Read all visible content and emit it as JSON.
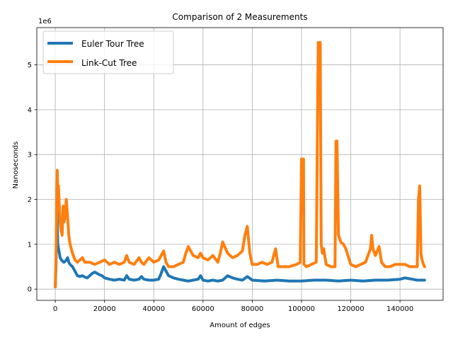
{
  "chart_data": {
    "type": "line",
    "title": "Comparison of 2 Measurements",
    "xlabel": "Amount of edges",
    "ylabel": "Nanoseconds",
    "y_offset_label": "1e6",
    "xlim": [
      -7500,
      157500
    ],
    "ylim": [
      -0.25,
      5.83
    ],
    "x_ticks": [
      0,
      20000,
      40000,
      60000,
      80000,
      100000,
      120000,
      140000
    ],
    "x_tick_labels": [
      "0",
      "20000",
      "40000",
      "60000",
      "80000",
      "100000",
      "120000",
      "140000"
    ],
    "y_ticks": [
      0,
      1,
      2,
      3,
      4,
      5
    ],
    "y_tick_labels": [
      "0",
      "1",
      "2",
      "3",
      "4",
      "5"
    ],
    "grid": true,
    "legend_position": "top-left",
    "series": [
      {
        "name": "Euler Tour Tree",
        "color": "#1f77b4",
        "x": [
          0,
          300,
          700,
          1000,
          1500,
          2000,
          2500,
          3000,
          3500,
          4000,
          4500,
          5000,
          5500,
          6000,
          7000,
          8000,
          9000,
          10000,
          11000,
          12000,
          13000,
          14000,
          15000,
          16000,
          17000,
          18000,
          19000,
          20000,
          22000,
          24000,
          26000,
          28000,
          29000,
          30000,
          32000,
          34000,
          35000,
          36000,
          38000,
          40000,
          42000,
          43000,
          44000,
          45000,
          46000,
          48000,
          50000,
          52000,
          54000,
          56000,
          58000,
          59000,
          60000,
          62000,
          64000,
          66000,
          68000,
          70000,
          72000,
          74000,
          76000,
          78000,
          80000,
          85000,
          90000,
          95000,
          100000,
          105000,
          110000,
          115000,
          120000,
          125000,
          130000,
          135000,
          140000,
          142000,
          145000,
          147000,
          148000,
          149000,
          150000
        ],
        "y": [
          0.05,
          0.5,
          1.8,
          1.0,
          0.85,
          0.7,
          0.65,
          0.62,
          0.6,
          0.62,
          0.65,
          0.7,
          0.6,
          0.55,
          0.5,
          0.4,
          0.3,
          0.28,
          0.3,
          0.27,
          0.25,
          0.3,
          0.35,
          0.38,
          0.35,
          0.32,
          0.3,
          0.25,
          0.22,
          0.2,
          0.22,
          0.2,
          0.3,
          0.22,
          0.2,
          0.22,
          0.28,
          0.22,
          0.2,
          0.2,
          0.22,
          0.35,
          0.5,
          0.4,
          0.3,
          0.25,
          0.22,
          0.2,
          0.18,
          0.2,
          0.22,
          0.3,
          0.2,
          0.18,
          0.2,
          0.18,
          0.2,
          0.3,
          0.25,
          0.22,
          0.2,
          0.28,
          0.2,
          0.18,
          0.2,
          0.18,
          0.18,
          0.2,
          0.2,
          0.18,
          0.2,
          0.18,
          0.2,
          0.2,
          0.22,
          0.25,
          0.22,
          0.2,
          0.2,
          0.2,
          0.2
        ]
      },
      {
        "name": "Link-Cut Tree",
        "color": "#ff7f0e",
        "x": [
          0,
          300,
          800,
          1000,
          1300,
          1600,
          2000,
          2400,
          2800,
          3200,
          3600,
          4000,
          4500,
          5000,
          5500,
          6000,
          7000,
          8000,
          9000,
          10000,
          11000,
          12000,
          14000,
          16000,
          18000,
          20000,
          22000,
          24000,
          26000,
          28000,
          29000,
          30000,
          32000,
          34000,
          35000,
          36000,
          38000,
          40000,
          42000,
          43000,
          44000,
          45000,
          46000,
          48000,
          50000,
          52000,
          53000,
          54000,
          56000,
          58000,
          59000,
          60000,
          62000,
          64000,
          66000,
          67000,
          68000,
          70000,
          72000,
          74000,
          76000,
          77000,
          78000,
          79000,
          80000,
          82000,
          84000,
          86000,
          88000,
          89500,
          90500,
          92000,
          95000,
          98000,
          99500,
          100000,
          100800,
          101000,
          102000,
          104000,
          106000,
          106800,
          107200,
          107600,
          108000,
          108500,
          109000,
          110000,
          112000,
          113600,
          114000,
          114400,
          115000,
          116000,
          117000,
          118000,
          120000,
          122000,
          124000,
          126000,
          128000,
          128500,
          129000,
          130000,
          131500,
          132500,
          134000,
          136000,
          138000,
          140000,
          142000,
          144000,
          146000,
          147000,
          147500,
          148000,
          148500,
          149000,
          149500,
          150000
        ],
        "y": [
          0.05,
          0.7,
          2.65,
          2.2,
          2.3,
          1.9,
          1.5,
          1.3,
          1.2,
          1.85,
          1.5,
          1.65,
          2.0,
          1.6,
          1.2,
          1.0,
          0.8,
          0.65,
          0.6,
          0.65,
          0.7,
          0.6,
          0.6,
          0.55,
          0.6,
          0.65,
          0.55,
          0.6,
          0.55,
          0.6,
          0.75,
          0.6,
          0.55,
          0.7,
          0.6,
          0.55,
          0.7,
          0.6,
          0.65,
          0.75,
          0.85,
          0.6,
          0.5,
          0.5,
          0.55,
          0.6,
          0.8,
          0.95,
          0.75,
          0.7,
          0.8,
          0.7,
          0.65,
          0.75,
          0.6,
          0.8,
          1.05,
          0.8,
          0.7,
          0.75,
          0.85,
          1.2,
          1.4,
          0.8,
          0.55,
          0.55,
          0.6,
          0.55,
          0.6,
          0.9,
          0.5,
          0.5,
          0.5,
          0.55,
          0.6,
          2.9,
          2.9,
          0.55,
          0.5,
          0.55,
          0.6,
          5.5,
          5.45,
          5.5,
          1.0,
          0.8,
          0.9,
          0.55,
          0.5,
          0.5,
          3.3,
          3.3,
          1.2,
          1.05,
          1.0,
          0.9,
          0.55,
          0.5,
          0.55,
          0.6,
          0.9,
          1.2,
          0.9,
          0.75,
          0.95,
          0.6,
          0.5,
          0.5,
          0.55,
          0.55,
          0.55,
          0.5,
          0.5,
          0.5,
          2.0,
          2.3,
          0.8,
          0.65,
          0.55,
          0.5
        ]
      }
    ]
  }
}
